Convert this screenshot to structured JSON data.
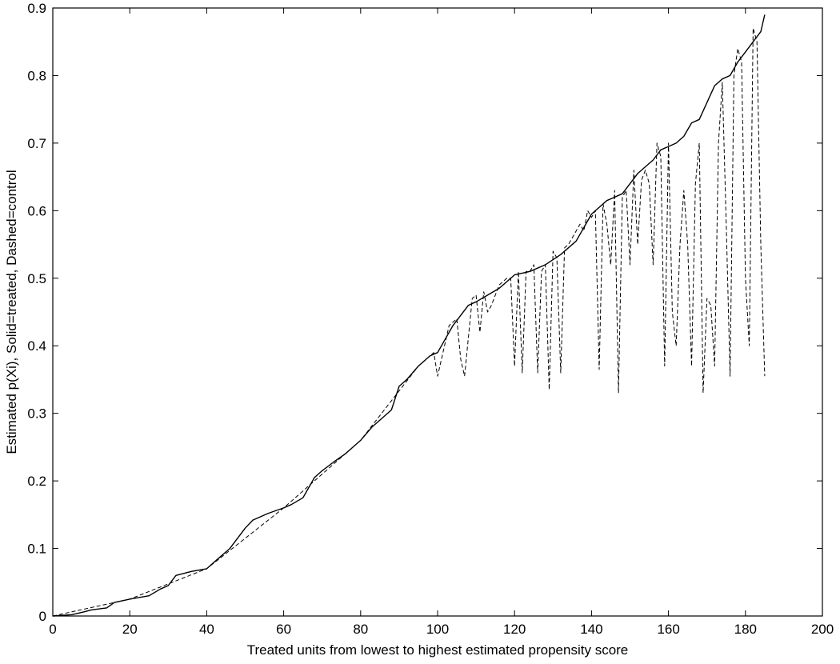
{
  "chart_data": {
    "type": "line",
    "title": "",
    "xlabel": "Treated units from lowest to highest estimated propensity score",
    "ylabel": "Estimated p(Xi), Solid=treated, Dashed=control",
    "xlim": [
      0,
      200
    ],
    "ylim": [
      0,
      0.9
    ],
    "xticks": [
      0,
      20,
      40,
      60,
      80,
      100,
      120,
      140,
      160,
      180,
      200
    ],
    "yticks": [
      0,
      0.1,
      0.2,
      0.3,
      0.4,
      0.5,
      0.6,
      0.7,
      0.8,
      0.9
    ],
    "grid": false,
    "series": [
      {
        "style": "solid",
        "x": [
          0,
          5,
          8,
          10,
          14,
          16,
          20,
          25,
          28,
          30,
          32,
          36,
          40,
          43,
          46,
          50,
          52,
          56,
          60,
          62,
          65,
          68,
          70,
          73,
          76,
          78,
          80,
          83,
          86,
          88,
          90,
          92,
          95,
          98,
          100,
          102,
          104,
          106,
          108,
          110,
          113,
          116,
          120,
          124,
          128,
          132,
          136,
          140,
          144,
          148,
          152,
          156,
          158,
          160,
          162,
          164,
          166,
          168,
          170,
          172,
          174,
          176,
          178,
          180,
          182,
          184,
          185
        ],
        "y": [
          0,
          0.002,
          0.006,
          0.009,
          0.012,
          0.02,
          0.025,
          0.03,
          0.04,
          0.045,
          0.06,
          0.066,
          0.07,
          0.085,
          0.1,
          0.13,
          0.142,
          0.152,
          0.16,
          0.165,
          0.175,
          0.205,
          0.215,
          0.228,
          0.24,
          0.25,
          0.26,
          0.28,
          0.295,
          0.305,
          0.34,
          0.35,
          0.37,
          0.385,
          0.39,
          0.41,
          0.43,
          0.445,
          0.46,
          0.465,
          0.475,
          0.485,
          0.505,
          0.51,
          0.52,
          0.535,
          0.555,
          0.595,
          0.615,
          0.625,
          0.655,
          0.675,
          0.69,
          0.695,
          0.7,
          0.71,
          0.73,
          0.735,
          0.76,
          0.785,
          0.795,
          0.8,
          0.82,
          0.835,
          0.85,
          0.865,
          0.89
        ]
      },
      {
        "style": "dashed",
        "x": [
          0,
          20,
          40,
          60,
          80,
          95,
          99,
          100,
          103,
          105,
          106,
          107,
          109,
          110,
          111,
          112,
          113,
          114,
          116,
          118,
          119,
          120,
          121,
          122,
          123,
          124,
          125,
          126,
          127,
          128,
          129,
          130,
          131,
          132,
          133,
          134,
          135,
          136,
          137,
          138,
          139,
          140,
          141,
          142,
          143,
          144,
          145,
          146,
          147,
          148,
          149,
          150,
          151,
          152,
          153,
          154,
          155,
          156,
          157,
          158,
          159,
          160,
          161,
          162,
          163,
          164,
          165,
          166,
          167,
          168,
          169,
          170,
          171,
          172,
          173,
          174,
          175,
          176,
          177,
          178,
          179,
          180,
          181,
          182,
          183,
          184,
          185
        ],
        "y": [
          0,
          0.025,
          0.07,
          0.16,
          0.26,
          0.37,
          0.39,
          0.355,
          0.43,
          0.44,
          0.38,
          0.355,
          0.47,
          0.475,
          0.42,
          0.48,
          0.45,
          0.46,
          0.49,
          0.5,
          0.5,
          0.37,
          0.51,
          0.36,
          0.51,
          0.51,
          0.52,
          0.36,
          0.51,
          0.52,
          0.335,
          0.54,
          0.53,
          0.36,
          0.545,
          0.55,
          0.56,
          0.57,
          0.58,
          0.57,
          0.6,
          0.59,
          0.6,
          0.365,
          0.61,
          0.58,
          0.52,
          0.63,
          0.33,
          0.62,
          0.63,
          0.52,
          0.66,
          0.55,
          0.645,
          0.66,
          0.64,
          0.52,
          0.7,
          0.68,
          0.37,
          0.7,
          0.45,
          0.4,
          0.55,
          0.63,
          0.55,
          0.37,
          0.64,
          0.7,
          0.33,
          0.47,
          0.46,
          0.37,
          0.7,
          0.79,
          0.58,
          0.355,
          0.8,
          0.84,
          0.82,
          0.5,
          0.4,
          0.87,
          0.85,
          0.55,
          0.355
        ]
      }
    ]
  }
}
